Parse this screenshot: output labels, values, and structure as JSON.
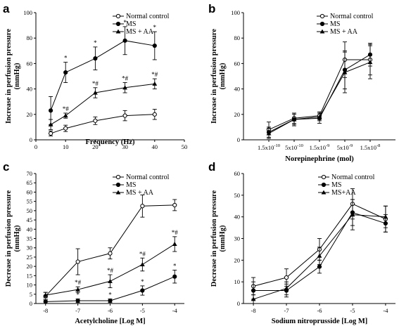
{
  "chart_data": [
    {
      "panel": "a",
      "type": "line",
      "xlabel": "Frequency (Hz)",
      "ylabel": [
        "Increase in perfusion pressure",
        "(mmHg)"
      ],
      "xlim": [
        0,
        50
      ],
      "ylim": [
        0,
        100
      ],
      "xticks": [
        0,
        10,
        20,
        30,
        40,
        50
      ],
      "yticks": [
        0,
        20,
        40,
        60,
        80,
        100
      ],
      "xtick_labels": [
        "0",
        "10",
        "20",
        "30",
        "40",
        "50"
      ],
      "ytick_labels": [
        "0",
        "20",
        "40",
        "60",
        "80",
        "100"
      ],
      "legend": "top-right",
      "series": [
        {
          "name": "Normal control",
          "marker": "circle-open",
          "points": [
            {
              "x": 5,
              "y": 5,
              "err": 2
            },
            {
              "x": 10,
              "y": 9,
              "err": 2.5
            },
            {
              "x": 20,
              "y": 15,
              "err": 3
            },
            {
              "x": 30,
              "y": 19,
              "err": 4
            },
            {
              "x": 40,
              "y": 20,
              "err": 4
            }
          ]
        },
        {
          "name": "MS",
          "marker": "circle-filled",
          "points": [
            {
              "x": 5,
              "y": 23,
              "err": 11,
              "label": ""
            },
            {
              "x": 10,
              "y": 53,
              "err": 8,
              "label": "*"
            },
            {
              "x": 20,
              "y": 64,
              "err": 9,
              "label": "*"
            },
            {
              "x": 30,
              "y": 78,
              "err": 11,
              "label": "*"
            },
            {
              "x": 40,
              "y": 74,
              "err": 11,
              "label": "*"
            }
          ]
        },
        {
          "name": "MS + AA",
          "marker": "triangle-filled",
          "points": [
            {
              "x": 5,
              "y": 12,
              "err": 4,
              "label": ""
            },
            {
              "x": 10,
              "y": 19,
              "err": 2,
              "label": "*#"
            },
            {
              "x": 20,
              "y": 37,
              "err": 4,
              "label": "*#"
            },
            {
              "x": 30,
              "y": 41,
              "err": 4,
              "label": "*#"
            },
            {
              "x": 40,
              "y": 44,
              "err": 4,
              "label": "*#"
            }
          ]
        }
      ]
    },
    {
      "panel": "b",
      "type": "line",
      "xlabel": "Norepinephrine (mol)",
      "ylabel": [
        "Increase in perfusion pressure",
        "(mmHg)"
      ],
      "categories": [
        "1.5x10-10",
        "5x10-10",
        "1.5x10-9",
        "5x10-9",
        "1.5x10-8"
      ],
      "category_labels": [
        {
          "base": "1.5x10",
          "exp": "-10"
        },
        {
          "base": "5x10",
          "exp": "-10"
        },
        {
          "base": "1.5x10",
          "exp": "-9"
        },
        {
          "base": "5x10",
          "exp": "-9"
        },
        {
          "base": "1.5x10",
          "exp": "-8"
        }
      ],
      "ylim": [
        0,
        100
      ],
      "yticks": [
        0,
        20,
        40,
        60,
        80,
        100
      ],
      "ytick_labels": [
        "0",
        "20",
        "40",
        "60",
        "80",
        "100"
      ],
      "legend": "top-right",
      "series": [
        {
          "name": "Normal control",
          "marker": "circle-open",
          "points": [
            {
              "x": 0,
              "y": 8,
              "err": 6
            },
            {
              "x": 1,
              "y": 17,
              "err": 4
            },
            {
              "x": 2,
              "y": 19,
              "err": 3
            },
            {
              "x": 3,
              "y": 63,
              "err": 14
            },
            {
              "x": 4,
              "y": 63,
              "err": 12
            }
          ]
        },
        {
          "name": "MS",
          "marker": "circle-filled",
          "points": [
            {
              "x": 0,
              "y": 6,
              "err": 4
            },
            {
              "x": 1,
              "y": 16,
              "err": 5
            },
            {
              "x": 2,
              "y": 17,
              "err": 4
            },
            {
              "x": 3,
              "y": 55,
              "err": 15
            },
            {
              "x": 4,
              "y": 67,
              "err": 9
            }
          ]
        },
        {
          "name": "MS + AA",
          "marker": "triangle-filled",
          "points": [
            {
              "x": 0,
              "y": 5,
              "err": 4
            },
            {
              "x": 1,
              "y": 16,
              "err": 4
            },
            {
              "x": 2,
              "y": 18,
              "err": 3
            },
            {
              "x": 3,
              "y": 53,
              "err": 16
            },
            {
              "x": 4,
              "y": 61,
              "err": 13
            }
          ]
        }
      ]
    },
    {
      "panel": "c",
      "type": "line",
      "xlabel": "Acetylcholine [Log M]",
      "ylabel": [
        "Decrease in perfusion pressure",
        "(mmHg)"
      ],
      "xlim": [
        -8.3,
        -3.7
      ],
      "ylim": [
        0,
        70
      ],
      "xticks": [
        -8,
        -7,
        -6,
        -5,
        -4
      ],
      "yticks": [
        0,
        5,
        10,
        15,
        20,
        25,
        30,
        35,
        40,
        45,
        50,
        55,
        60,
        65,
        70
      ],
      "xtick_labels": [
        "-8",
        "-7",
        "-6",
        "-5",
        "-4"
      ],
      "ytick_labels": [
        "0",
        "5",
        "10",
        "15",
        "20",
        "25",
        "30",
        "35",
        "40",
        "45",
        "50",
        "55",
        "60",
        "65",
        "70"
      ],
      "legend": "top-right",
      "series": [
        {
          "name": "Normal control",
          "marker": "circle-open",
          "points": [
            {
              "x": -8,
              "y": 4,
              "err": 2
            },
            {
              "x": -7,
              "y": 22.5,
              "err": 7
            },
            {
              "x": -6,
              "y": 27,
              "err": 3
            },
            {
              "x": -5,
              "y": 52.5,
              "err": 6
            },
            {
              "x": -4,
              "y": 53,
              "err": 3
            }
          ]
        },
        {
          "name": "MS",
          "marker": "circle-filled",
          "points": [
            {
              "x": -8,
              "y": 1,
              "err": 1,
              "label": ""
            },
            {
              "x": -7,
              "y": 1.5,
              "err": 1,
              "label": "*"
            },
            {
              "x": -6,
              "y": 1.5,
              "err": 1,
              "label": "*"
            },
            {
              "x": -5,
              "y": 7,
              "err": 2.5,
              "label": "*"
            },
            {
              "x": -4,
              "y": 14.5,
              "err": 3.5,
              "label": "*"
            }
          ]
        },
        {
          "name": "MS + AA",
          "marker": "triangle-filled",
          "points": [
            {
              "x": -8,
              "y": 4.5,
              "err": 1.5,
              "label": ""
            },
            {
              "x": -7,
              "y": 7.5,
              "err": 1.5,
              "label": "*#"
            },
            {
              "x": -6,
              "y": 12,
              "err": 3.5,
              "label": "*#"
            },
            {
              "x": -5,
              "y": 21,
              "err": 3.5,
              "label": "*#"
            },
            {
              "x": -4,
              "y": 32,
              "err": 4,
              "label": "*#"
            }
          ]
        }
      ]
    },
    {
      "panel": "d",
      "type": "line",
      "xlabel": "Sodium nitroprusside [Log M]",
      "ylabel": [
        "Decrease in perfusion pressure",
        "(mmHg)"
      ],
      "xlim": [
        -8.3,
        -3.7
      ],
      "ylim": [
        0,
        60
      ],
      "xticks": [
        -8,
        -7,
        -6,
        -5,
        -4
      ],
      "yticks": [
        0,
        10,
        20,
        30,
        40,
        50,
        60
      ],
      "xtick_labels": [
        "-8",
        "-7",
        "-6",
        "-5",
        "-4"
      ],
      "ytick_labels": [
        "0",
        "10",
        "20",
        "30",
        "40",
        "50",
        "60"
      ],
      "legend": "top-right",
      "series": [
        {
          "name": "Normal control",
          "marker": "circle-open",
          "points": [
            {
              "x": -8,
              "y": 8,
              "err": 4
            },
            {
              "x": -7,
              "y": 12,
              "err": 4
            },
            {
              "x": -6,
              "y": 25,
              "err": 5
            },
            {
              "x": -5,
              "y": 46,
              "err": 7
            },
            {
              "x": -4,
              "y": 39,
              "err": 6
            }
          ]
        },
        {
          "name": "MS",
          "marker": "circle-filled",
          "points": [
            {
              "x": -8,
              "y": 6,
              "err": 4
            },
            {
              "x": -7,
              "y": 6,
              "err": 3
            },
            {
              "x": -6,
              "y": 17,
              "err": 3
            },
            {
              "x": -5,
              "y": 42,
              "err": 6
            },
            {
              "x": -4,
              "y": 37,
              "err": 4
            }
          ]
        },
        {
          "name": "MS+AA",
          "marker": "triangle-filled",
          "points": [
            {
              "x": -8,
              "y": 2,
              "err": 2
            },
            {
              "x": -7,
              "y": 7,
              "err": 3
            },
            {
              "x": -6,
              "y": 22,
              "err": 4
            },
            {
              "x": -5,
              "y": 41,
              "err": 7
            },
            {
              "x": -4,
              "y": 40,
              "err": 5
            }
          ]
        }
      ]
    }
  ]
}
